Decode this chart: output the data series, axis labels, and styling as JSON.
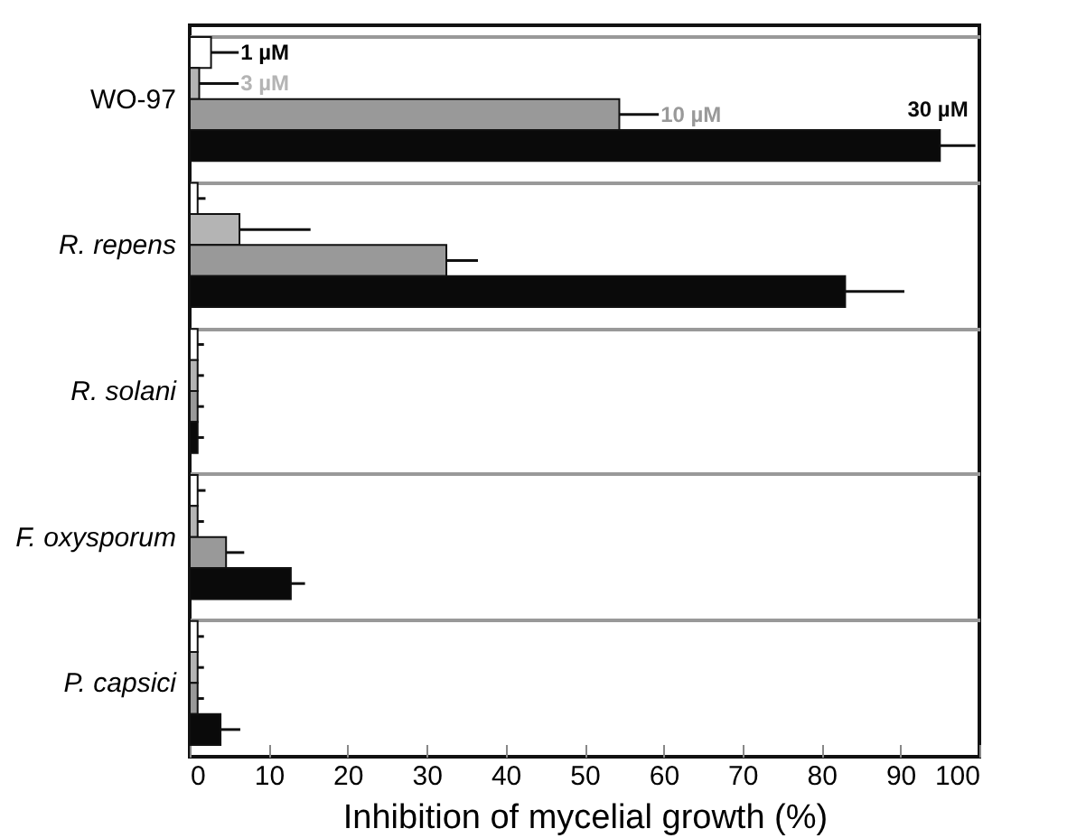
{
  "chart_data": {
    "type": "bar",
    "orientation": "horizontal",
    "categories": [
      "WO-97",
      "R. repens",
      "R. solani",
      "F. oxysporum",
      "P. capsici"
    ],
    "xlabel": "Inhibition of mycelial growth (%)",
    "xlim": [
      0,
      100
    ],
    "xticks": [
      0,
      10,
      20,
      30,
      40,
      50,
      60,
      70,
      80,
      90,
      100
    ],
    "grid": "y",
    "legend": false,
    "series": [
      {
        "name": "1 µM",
        "color": "#ffffff",
        "values": [
          2.7,
          1,
          1,
          1,
          1
        ],
        "errors": [
          3.5,
          1,
          0.8,
          1,
          0.8
        ]
      },
      {
        "name": "3 µM",
        "color": "#b4b4b4",
        "values": [
          1.2,
          6.3,
          1,
          1,
          1
        ],
        "errors": [
          5,
          9,
          0.8,
          0.8,
          0.8
        ]
      },
      {
        "name": "10 µM",
        "color": "#999999",
        "values": [
          54.4,
          32.5,
          1,
          4.6,
          1
        ],
        "errors": [
          5,
          4,
          0.8,
          2.3,
          0.8
        ]
      },
      {
        "name": "30 µM",
        "color": "#0a0a0a",
        "values": [
          95,
          83,
          1,
          12.8,
          3.9
        ],
        "errors": [
          4.5,
          7.5,
          0.8,
          1.8,
          2.5
        ]
      }
    ]
  }
}
